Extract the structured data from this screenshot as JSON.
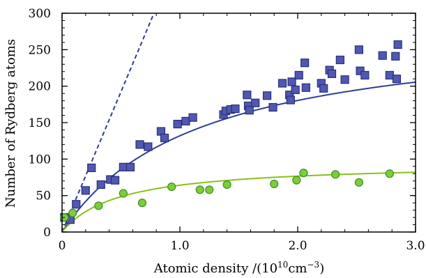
{
  "chart_data": {
    "type": "scatter",
    "title": "",
    "xlabel_main": "Atomic density /(10",
    "xlabel_exp1": "10",
    "xlabel_mid": "cm",
    "xlabel_exp2": "−3",
    "xlabel_end": ")",
    "ylabel": "Number of Rydberg atoms",
    "xlim": [
      0,
      3.0
    ],
    "ylim": [
      0,
      300
    ],
    "x_major_ticks": [
      0,
      1.0,
      2.0,
      3.0
    ],
    "x_tick_labels": [
      "0",
      "1.0",
      "2.0",
      "3.0"
    ],
    "x_minor_step": 0.2,
    "y_major_ticks": [
      0,
      50,
      100,
      150,
      200,
      250,
      300
    ],
    "y_tick_labels": [
      "0",
      "50",
      "100",
      "150",
      "200",
      "250",
      "300"
    ],
    "y_minor_step": 10,
    "grid": false,
    "colors": {
      "square_fill": "#5058b0",
      "square_edge": "#2a2f7a",
      "circle_fill": "#7ccc3e",
      "circle_edge": "#3e8f1a",
      "blue_line": "#2c3e98",
      "green_line": "#86c21a"
    },
    "series": [
      {
        "marker": "square",
        "x": [
          0.02,
          0.07,
          0.12,
          0.2,
          0.25,
          0.33,
          0.41,
          0.45,
          0.52,
          0.58,
          0.66,
          0.73,
          0.84,
          0.87,
          0.98,
          1.05,
          1.11,
          1.37,
          1.39,
          1.43,
          1.47,
          1.57,
          1.58,
          1.59,
          1.64,
          1.74,
          1.79,
          1.87,
          1.93,
          1.94,
          1.95,
          1.98,
          2.01,
          2.06,
          2.07,
          2.2,
          2.22,
          2.27,
          2.29,
          2.36,
          2.4,
          2.52,
          2.53,
          2.57,
          2.72,
          2.78,
          2.83,
          2.84,
          2.85
        ],
        "y": [
          20,
          17,
          38,
          57,
          88,
          65,
          72,
          71,
          89,
          89,
          120,
          117,
          138,
          129,
          148,
          152,
          157,
          161,
          166,
          168,
          169,
          188,
          173,
          167,
          177,
          187,
          171,
          204,
          188,
          181,
          206,
          195,
          215,
          232,
          198,
          204,
          197,
          222,
          217,
          236,
          209,
          250,
          221,
          215,
          242,
          215,
          241,
          210,
          257
        ]
      },
      {
        "marker": "circle",
        "x": [
          0.02,
          0.09,
          0.31,
          0.52,
          0.68,
          0.93,
          1.17,
          1.25,
          1.4,
          1.8,
          1.99,
          2.05,
          2.32,
          2.52,
          2.78
        ],
        "y": [
          20,
          26,
          36,
          53,
          40,
          62,
          58,
          58,
          65,
          66,
          71,
          81,
          79,
          68,
          80
        ]
      }
    ],
    "fits": [
      {
        "style": "dashed",
        "x": [
          0,
          0.78
        ],
        "y": [
          0,
          300
        ]
      },
      {
        "style": "solid",
        "kind": "saturation",
        "amplitude": 285,
        "k": 1.16
      },
      {
        "style": "solid",
        "kind": "saturation",
        "amplitude": 95,
        "k": 0.48
      }
    ]
  }
}
